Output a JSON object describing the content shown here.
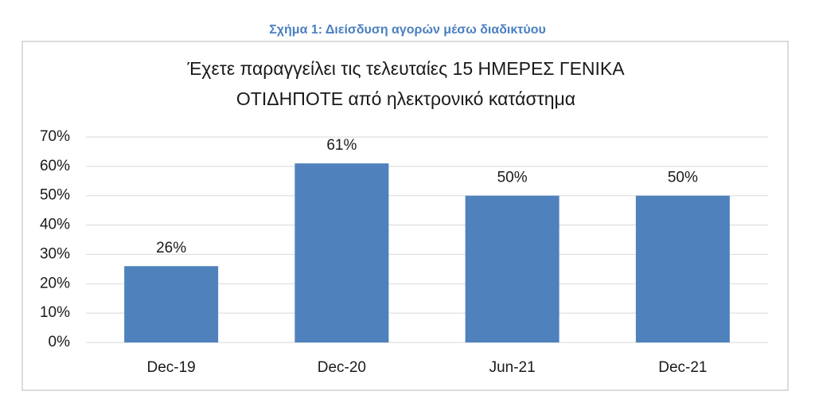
{
  "chart_data": {
    "type": "bar",
    "caption": "Σχήμα 1: Διείσδυση αγορών μέσω διαδικτύου",
    "title": [
      "Έχετε παραγγείλει τις τελευταίες 15 ΗΜΕΡΕΣ ΓΕΝΙΚΑ",
      "ΟΤΙΔΗΠΟΤΕ από ηλεκτρονικό κατάστημα"
    ],
    "categories": [
      "Dec-19",
      "Dec-20",
      "Jun-21",
      "Dec-21"
    ],
    "values": [
      26,
      61,
      50,
      50
    ],
    "value_labels": [
      "26%",
      "61%",
      "50%",
      "50%"
    ],
    "color": "#4f81bd",
    "ylim": [
      0,
      70
    ],
    "yticks": [
      {
        "value": 0,
        "label": "0%"
      },
      {
        "value": 10,
        "label": "10%"
      },
      {
        "value": 20,
        "label": "20%"
      },
      {
        "value": 30,
        "label": "30%"
      },
      {
        "value": 40,
        "label": "40%"
      },
      {
        "value": 50,
        "label": "50%"
      },
      {
        "value": 60,
        "label": "60%"
      },
      {
        "value": 70,
        "label": "70%"
      }
    ],
    "grid": true
  }
}
